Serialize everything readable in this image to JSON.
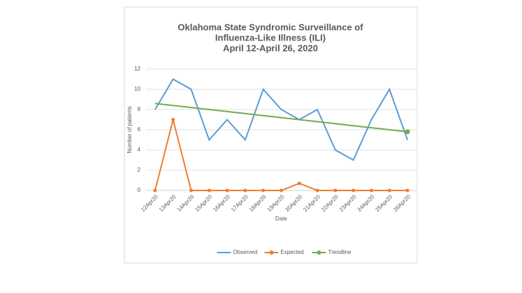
{
  "chart_data": {
    "type": "line",
    "title": [
      "Oklahoma State Syndromic Surveillance of",
      "Influenza-Like Illness (ILI)",
      "April 12-April 26, 2020"
    ],
    "x_label": "Date",
    "y_label": "Number of patients",
    "categories": [
      "12Apr20",
      "13Apr20",
      "14Apr20",
      "15Apr20",
      "16Apr20",
      "17Apr20",
      "18Apr20",
      "19Apr20",
      "20Apr20",
      "21Apr20",
      "22Apr20",
      "23Apr20",
      "24Apr20",
      "25Apr20",
      "26Apr20"
    ],
    "series": [
      {
        "name": "Observed",
        "color": "#5b9bd5",
        "markers": "none",
        "values": [
          8,
          11,
          10,
          5,
          7,
          5,
          10,
          8,
          7,
          8,
          4,
          3,
          7,
          10,
          5
        ]
      },
      {
        "name": "Expected",
        "color": "#ed7d31",
        "markers": "all",
        "values": [
          0,
          7,
          0,
          0,
          0,
          0,
          0,
          0,
          0.7,
          0,
          0,
          0,
          0,
          0,
          0
        ]
      },
      {
        "name": "Trendline",
        "color": "#70ad47",
        "markers": "last",
        "values": [
          8.6,
          8.4,
          8.2,
          8.0,
          7.8,
          7.6,
          7.4,
          7.2,
          7.0,
          6.8,
          6.6,
          6.4,
          6.2,
          6.0,
          5.8
        ]
      }
    ],
    "ylim": [
      0,
      12
    ],
    "yticks": [
      0,
      2,
      4,
      6,
      8,
      10,
      12
    ],
    "grid": true,
    "legend": "bottom"
  }
}
